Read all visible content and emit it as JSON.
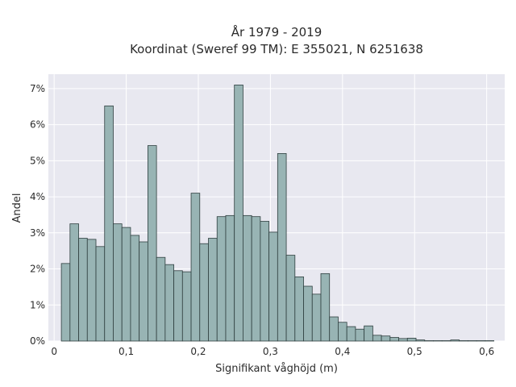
{
  "chart_data": {
    "type": "bar",
    "title_lines": [
      "År 1979 - 2019",
      "Koordinat (Sweref 99 TM): E 355021, N 6251638"
    ],
    "xlabel": "Signifikant våghöjd (m)",
    "ylabel": "Andel",
    "xlim": [
      -0.008,
      0.625
    ],
    "ylim": [
      0,
      7.4
    ],
    "x_ticks": [
      0,
      0.1,
      0.2,
      0.3,
      0.4,
      0.5,
      0.6
    ],
    "x_tick_labels": [
      "0",
      "0,1",
      "0,2",
      "0,3",
      "0,4",
      "0,5",
      "0,6"
    ],
    "y_ticks": [
      0,
      1,
      2,
      3,
      4,
      5,
      6,
      7
    ],
    "y_tick_labels": [
      "0%",
      "1%",
      "2%",
      "3%",
      "4%",
      "5%",
      "6%",
      "7%"
    ],
    "bin_start": 0.01,
    "bin_width": 0.012,
    "values": [
      2.15,
      3.25,
      2.85,
      2.82,
      2.62,
      6.52,
      3.25,
      3.15,
      2.93,
      2.75,
      5.42,
      2.32,
      2.12,
      1.95,
      1.92,
      4.1,
      2.7,
      2.85,
      3.45,
      3.48,
      7.1,
      3.48,
      3.45,
      3.32,
      3.02,
      5.2,
      2.38,
      1.78,
      1.52,
      1.3,
      1.87,
      0.67,
      0.52,
      0.4,
      0.33,
      0.42,
      0.16,
      0.14,
      0.1,
      0.07,
      0.08,
      0.03,
      0.01,
      0.01,
      0.01,
      0.03,
      0.01,
      0.01,
      0.01,
      0.01
    ],
    "grid": true,
    "bar_fill": "#98b4b4",
    "bar_stroke": "#2f3f3f",
    "plot_background": "#e8e8f0",
    "grid_color": "#ffffff"
  }
}
